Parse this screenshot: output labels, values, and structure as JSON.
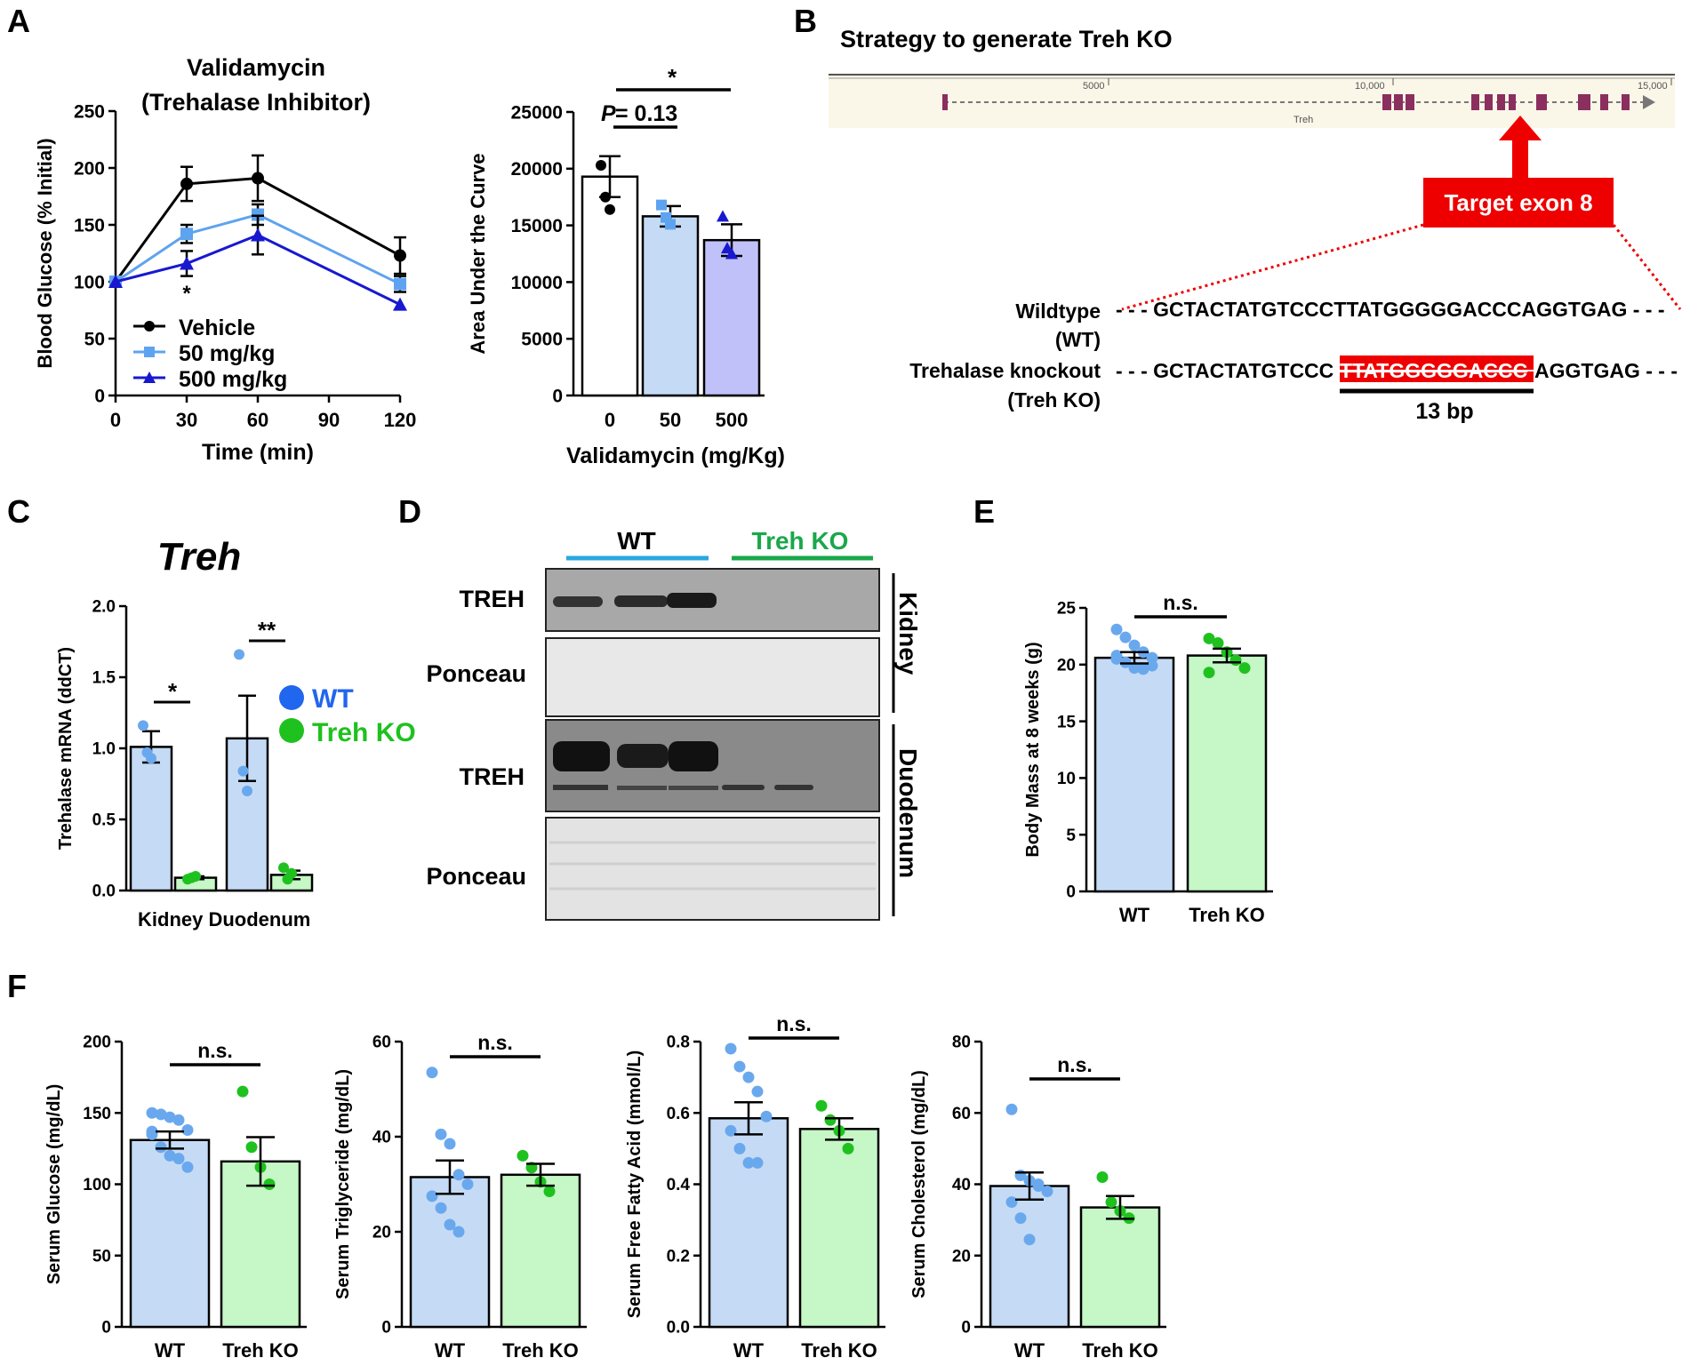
{
  "panels": {
    "A": "A",
    "B": "B",
    "C": "C",
    "D": "D",
    "E": "E",
    "F": "F"
  },
  "colors": {
    "wt_fill": "#c5dbf5",
    "wt_dot": "#6aa8ee",
    "ko_fill": "#c6f7c6",
    "ko_dot": "#1fc11f",
    "vehicle": "#000000",
    "mg50": "#5ea3f0",
    "mg500": "#1818d0",
    "auc500_fill": "#c1c1fa",
    "red": "#ee0000"
  },
  "chart_data": [
    {
      "id": "A1",
      "type": "line",
      "title": [
        "Validamycin",
        "(Trehalase Inhibitor)"
      ],
      "xlabel": "Time (min)",
      "ylabel": "Blood Glucose (% Initial)",
      "x": [
        0,
        30,
        60,
        120
      ],
      "xticks": [
        0,
        30,
        60,
        90,
        120
      ],
      "ylim": [
        0,
        250
      ],
      "yticks": [
        0,
        50,
        100,
        150,
        200,
        250
      ],
      "series": [
        {
          "name": "Vehicle",
          "values": [
            100,
            186,
            191,
            123
          ],
          "err": [
            0,
            15,
            20,
            16
          ]
        },
        {
          "name": "50 mg/kg",
          "values": [
            100,
            142,
            159,
            98
          ],
          "err": [
            0,
            8,
            9,
            7
          ]
        },
        {
          "name": "500 mg/kg",
          "values": [
            100,
            116,
            141,
            80
          ],
          "err": [
            0,
            11,
            17,
            0
          ]
        }
      ],
      "annotations": [
        "*"
      ]
    },
    {
      "id": "A2",
      "type": "bar",
      "xlabel": "Validamycin (mg/Kg)",
      "ylabel": "Area Under the Curve",
      "categories": [
        "0",
        "50",
        "500"
      ],
      "values": [
        19300,
        15800,
        13700
      ],
      "err": [
        1800,
        900,
        1400
      ],
      "points": [
        [
          20300,
          17500,
          16400
        ],
        [
          16800,
          15700,
          15100
        ],
        [
          15800,
          13000,
          12500
        ]
      ],
      "ylim": [
        0,
        25000
      ],
      "yticks": [
        0,
        5000,
        10000,
        15000,
        20000,
        25000
      ],
      "sig": [
        "*",
        "= 0.13"
      ],
      "sig_p": "P"
    },
    {
      "id": "C",
      "type": "bar",
      "title": "Treh",
      "ylabel": "Trehalase mRNA (ddCT)",
      "categories": [
        "Kidney",
        "Duodenum"
      ],
      "series": [
        {
          "name": "WT",
          "values": [
            1.01,
            1.07
          ],
          "err": [
            0.11,
            0.3
          ],
          "points": [
            [
              1.16,
              0.97,
              0.93
            ],
            [
              1.66,
              0.84,
              0.7
            ]
          ]
        },
        {
          "name": "Treh KO",
          "values": [
            0.09,
            0.11
          ],
          "err": [
            0.01,
            0.03
          ],
          "points": [
            [
              0.08,
              0.09,
              0.1
            ],
            [
              0.16,
              0.08,
              0.12
            ]
          ]
        }
      ],
      "ylim": [
        0,
        2.0
      ],
      "yticks": [
        "0.0",
        "0.5",
        "1.0",
        "1.5",
        "2.0"
      ],
      "sig": [
        "*",
        "**"
      ]
    },
    {
      "id": "E",
      "type": "bar",
      "ylabel": "Body Mass at 8 weeks (g)",
      "categories": [
        "WT",
        "Treh KO"
      ],
      "values": [
        20.6,
        20.8
      ],
      "err": [
        0.5,
        0.6
      ],
      "points": [
        [
          23.1,
          22.4,
          21.7,
          21.1,
          20.6,
          20.5,
          20.2,
          19.7,
          19.6,
          19.9,
          20.8
        ],
        [
          22.3,
          21.9,
          21.1,
          20.4,
          19.7,
          19.3
        ]
      ],
      "ylim": [
        0,
        25
      ],
      "yticks": [
        0,
        5,
        10,
        15,
        20,
        25
      ],
      "sig": "n.s."
    },
    {
      "id": "F1",
      "type": "bar",
      "ylabel": "Serum Glucose (mg/dL)",
      "categories": [
        "WT",
        "Treh KO"
      ],
      "values": [
        131,
        116
      ],
      "err": [
        6,
        17
      ],
      "points": [
        [
          150,
          149,
          147,
          145,
          138,
          137,
          126,
          120,
          118,
          112,
          135
        ],
        [
          165,
          126,
          112,
          100
        ]
      ],
      "ylim": [
        0,
        200
      ],
      "yticks": [
        0,
        50,
        100,
        150,
        200
      ],
      "sig": "n.s."
    },
    {
      "id": "F2",
      "type": "bar",
      "ylabel": "Serum Triglyceride (mg/dL)",
      "categories": [
        "WT",
        "Treh KO"
      ],
      "values": [
        31.5,
        32
      ],
      "err": [
        3.5,
        2.3
      ],
      "points": [
        [
          53.5,
          40.5,
          38.5,
          32,
          30,
          27.5,
          25,
          21.5,
          20
        ],
        [
          36,
          33.5,
          30.5,
          28.5
        ]
      ],
      "ylim": [
        0,
        60
      ],
      "yticks": [
        0,
        20,
        40,
        60
      ],
      "sig": "n.s."
    },
    {
      "id": "F3",
      "type": "bar",
      "ylabel": "Serum Free Fatty Acid (mmol/L)",
      "categories": [
        "WT",
        "Treh KO"
      ],
      "values": [
        0.585,
        0.555
      ],
      "err": [
        0.045,
        0.03
      ],
      "points": [
        [
          0.78,
          0.73,
          0.7,
          0.66,
          0.59,
          0.55,
          0.5,
          0.46,
          0.46
        ],
        [
          0.62,
          0.58,
          0.55,
          0.5
        ]
      ],
      "ylim": [
        0,
        0.8
      ],
      "yticks": [
        "0.0",
        "0.2",
        "0.4",
        "0.6",
        "0.8"
      ],
      "sig": "n.s."
    },
    {
      "id": "F4",
      "type": "bar",
      "ylabel": "Serum Cholesterol (mg/dL)",
      "categories": [
        "WT",
        "Treh KO"
      ],
      "values": [
        39.5,
        33.5
      ],
      "err": [
        3.8,
        3.2
      ],
      "points": [
        [
          61,
          42.5,
          41,
          39.5,
          38,
          35,
          30.5,
          24.5,
          40
        ],
        [
          42,
          35,
          32.5,
          30.5
        ]
      ],
      "ylim": [
        0,
        80
      ],
      "yticks": [
        0,
        20,
        40,
        60,
        80
      ],
      "sig": "n.s."
    }
  ],
  "panelA": {
    "legend": [
      "Vehicle",
      "50 mg/kg",
      "500 mg/kg"
    ]
  },
  "panelB": {
    "title": "Strategy to generate Treh KO",
    "ruler": [
      "5000",
      "10,000",
      "15,000"
    ],
    "gene": "Treh",
    "target": "Target exon 8",
    "wt_label": [
      "Wildtype",
      "(WT)"
    ],
    "ko_label": [
      "Trehalase knockout",
      "(Treh KO)"
    ],
    "wt_seq": "- - - GCTACTATGTCCCTTATGGGGGACCCAGGTGAG - - -",
    "ko_seq_prefix": "- - - GCTACTATGTCCC",
    "ko_seq_deleted": "TTATGGGGGACCC",
    "ko_seq_suffix": "AGGTGAG - - -",
    "deletion": "13 bp"
  },
  "panelC": {
    "legend": [
      "WT",
      "Treh KO"
    ],
    "xlabel": "Kidney Duodenum"
  },
  "panelD": {
    "groups": [
      "WT",
      "Treh KO"
    ],
    "rows": [
      "TREH",
      "Ponceau",
      "TREH",
      "Ponceau"
    ],
    "tissues": [
      "Kidney",
      "Duodenum"
    ]
  }
}
